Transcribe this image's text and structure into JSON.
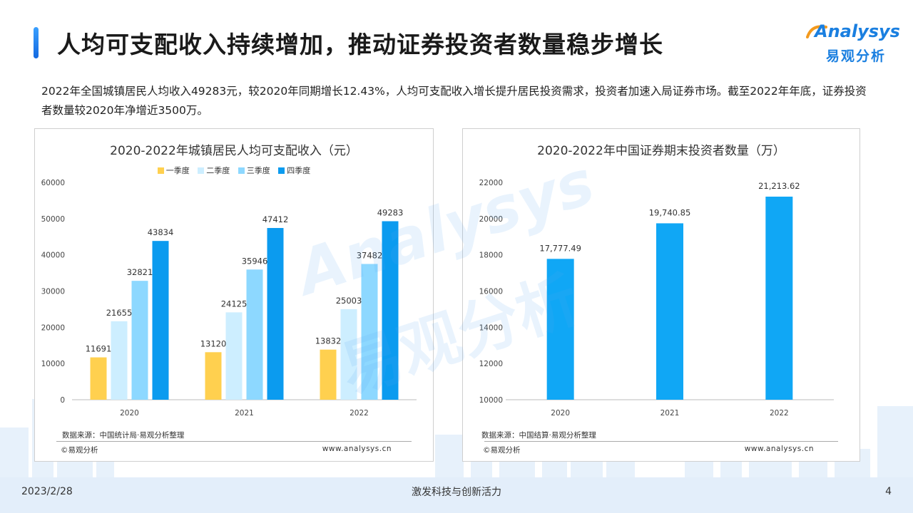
{
  "page": {
    "title": "人均可支配收入持续增加，推动证券投资者数量稳步增长",
    "summary": "2022年全国城镇居民人均收入49283元，较2020年同期增长12.43%，人均可支配收入增长提升居民投资需求，投资者加速入局证券市场。截至2022年年底，证券投资者数量较2020年净增近3500万。",
    "footer_date": "2023/2/28",
    "footer_slogan": "激发科技与创新活力",
    "page_number": "4"
  },
  "logo": {
    "brand_en": "Analysys",
    "brand_cn": "易观分析"
  },
  "watermark": {
    "en": "Analysys",
    "cn": "易观分析"
  },
  "colors": {
    "q1": "#FFD04F",
    "q2": "#CDEEFF",
    "q3": "#8DD8FF",
    "q4": "#0B9BEF",
    "investors": "#10A7F5",
    "accent": "#1a7fe0"
  },
  "left_panel": {
    "source": "数据来源：中国统计局·易观分析整理",
    "copyright": "©易观分析",
    "site": "www.analysys.cn"
  },
  "right_panel": {
    "source": "数据来源：中国结算·易观分析整理",
    "copyright": "©易观分析",
    "site": "www.analysys.cn"
  },
  "chart_data": [
    {
      "type": "bar",
      "title": "2020-2022年城镇居民人均可支配收入（元）",
      "categories": [
        "2020",
        "2021",
        "2022"
      ],
      "series": [
        {
          "name": "一季度",
          "values": [
            11691,
            13120,
            13832
          ],
          "color": "#FFD04F"
        },
        {
          "name": "二季度",
          "values": [
            21655,
            24125,
            25003
          ],
          "color": "#CDEEFF"
        },
        {
          "name": "三季度",
          "values": [
            32821,
            35946,
            37482
          ],
          "color": "#8DD8FF"
        },
        {
          "name": "四季度",
          "values": [
            43834,
            47412,
            49283
          ],
          "color": "#0B9BEF"
        }
      ],
      "ylim": [
        0,
        60000
      ],
      "yticks": [
        0,
        10000,
        20000,
        30000,
        40000,
        50000,
        60000
      ],
      "legend": "top",
      "grid": false
    },
    {
      "type": "bar",
      "title": "2020-2022年中国证券期末投资者数量（万）",
      "categories": [
        "2020",
        "2021",
        "2022"
      ],
      "values": [
        17777.49,
        19740.85,
        21213.62
      ],
      "value_labels": [
        "17,777.49",
        "19,740.85",
        "21,213.62"
      ],
      "color": "#10A7F5",
      "ylim": [
        10000,
        22000
      ],
      "yticks": [
        10000,
        12000,
        14000,
        16000,
        18000,
        20000,
        22000
      ],
      "grid": false
    }
  ]
}
